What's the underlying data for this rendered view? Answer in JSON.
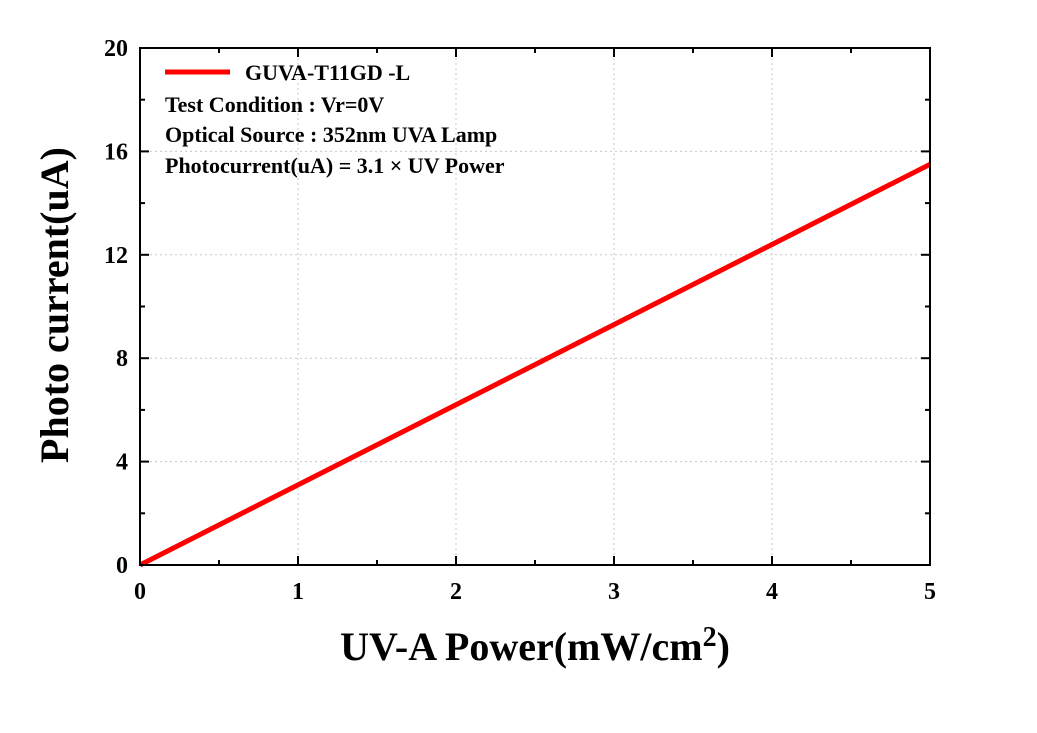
{
  "chart_data": {
    "type": "line",
    "xlabel": "UV-A Power(mW/cm",
    "xlabel_superscript": "2",
    "xlabel_suffix": ")",
    "ylabel": "Photo current(uA)",
    "xlim": [
      0,
      5
    ],
    "ylim": [
      0,
      20
    ],
    "x_ticks": [
      0,
      1,
      2,
      3,
      4,
      5
    ],
    "y_ticks": [
      0,
      4,
      8,
      12,
      16,
      20
    ],
    "x_tick_labels": [
      "0",
      "1",
      "2",
      "3",
      "4",
      "5"
    ],
    "y_tick_labels": [
      "0",
      "4",
      "8",
      "12",
      "16",
      "20"
    ],
    "grid": true,
    "legend_position": "top-left",
    "series": [
      {
        "name": "GUVA-T11GD -L",
        "color": "#ff0000",
        "x": [
          0,
          1,
          2,
          3,
          4,
          5
        ],
        "y": [
          0,
          3.1,
          6.2,
          9.3,
          12.4,
          15.5
        ]
      }
    ],
    "annotations": [
      "Test Condition : Vr=0V",
      "Optical Source : 352nm UVA Lamp",
      "Photocurrent(uA) = 3.1 × UV Power"
    ]
  }
}
